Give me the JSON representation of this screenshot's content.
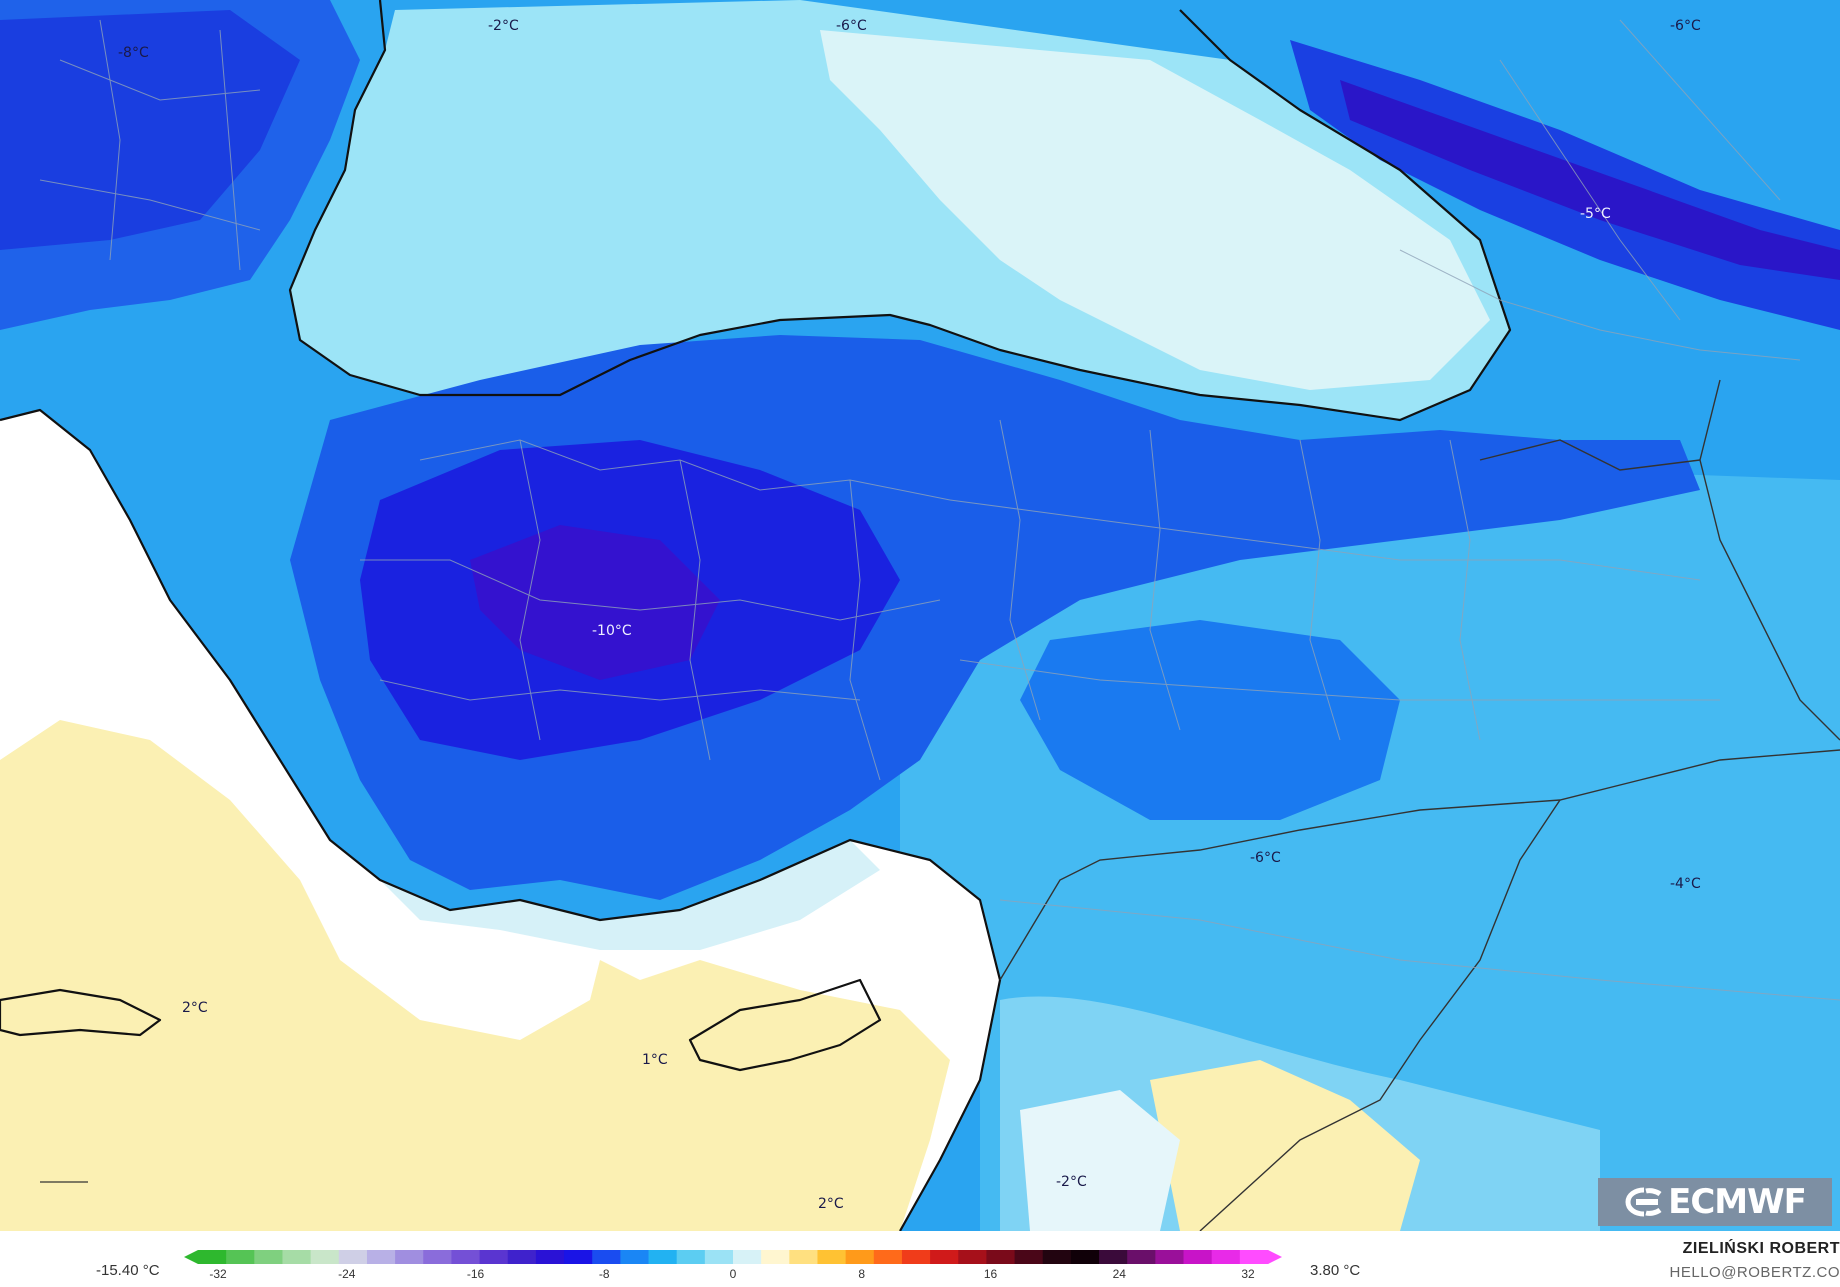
{
  "map": {
    "labels": [
      {
        "id": "nw-balkans",
        "text": "-8°C"
      },
      {
        "id": "black-sea-west",
        "text": "-2°C"
      },
      {
        "id": "black-sea-north",
        "text": "-6°C"
      },
      {
        "id": "caucasus-north",
        "text": "-6°C"
      },
      {
        "id": "caucasus",
        "text": "-5°C"
      },
      {
        "id": "central-anatolia",
        "text": "-10°C"
      },
      {
        "id": "east-anatolia",
        "text": "-6°C"
      },
      {
        "id": "iran-west",
        "text": "-4°C"
      },
      {
        "id": "crete",
        "text": "2°C"
      },
      {
        "id": "cyprus-south",
        "text": "1°C"
      },
      {
        "id": "levant",
        "text": "2°C"
      },
      {
        "id": "iraq-north",
        "text": "-2°C"
      }
    ]
  },
  "logo": {
    "text": "ECMWF",
    "icon": "ecmwf-logo-icon"
  },
  "legend": {
    "min_value": "-15.40 °C",
    "max_value": "3.80 °C",
    "ticks": [
      "-32",
      "-24",
      "-16",
      "-8",
      "0",
      "8",
      "16",
      "24",
      "32"
    ],
    "colors": [
      "#2eb82e",
      "#55c455",
      "#7fd07f",
      "#a6dca6",
      "#c9e6c9",
      "#cfcfe6",
      "#b8b0e6",
      "#a08ee0",
      "#8a6cdb",
      "#7450d6",
      "#5a35d0",
      "#3f22cc",
      "#2a12d6",
      "#1a14e6",
      "#1a4cf0",
      "#1a86f5",
      "#22b2f2",
      "#5ccdf2",
      "#9be2f5",
      "#d7f2f7",
      "#fff6d0",
      "#ffe080",
      "#ffc233",
      "#ff9a1a",
      "#ff6a1a",
      "#f03c1a",
      "#d01a1a",
      "#a6101a",
      "#7a0a1a",
      "#4a0618",
      "#220410",
      "#100008",
      "#3a0a3a",
      "#6a0f6a",
      "#9a109a",
      "#c814c8",
      "#e82ae8",
      "#ff4cff"
    ]
  },
  "credits": {
    "author": "ZIELIŃSKI ROBERT",
    "email": "HELLO@ROBERTZ.CO"
  }
}
